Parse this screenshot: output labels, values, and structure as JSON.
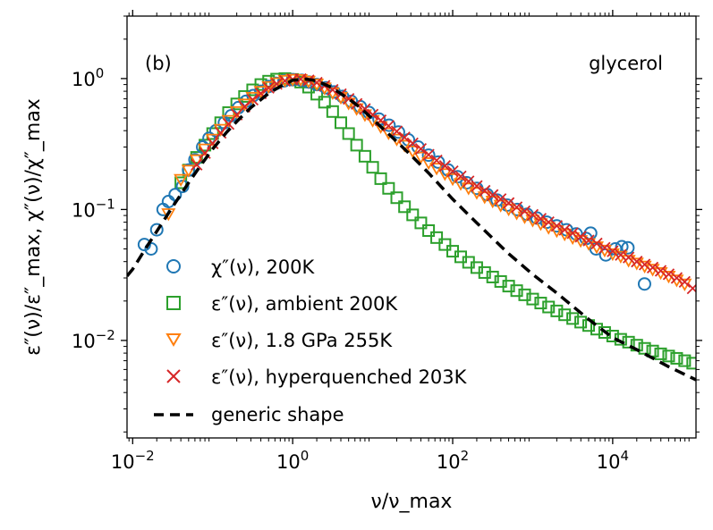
{
  "chart_data": {
    "type": "scatter",
    "title": "",
    "panel_label": "(b)",
    "corner_label": "glycerol",
    "xlabel": "ν/ν_max",
    "ylabel": "ε″(ν)/ε″_max,  χ″(ν)/χ″_max",
    "xscale": "log",
    "yscale": "log",
    "xlim": [
      0.0085,
      110000
    ],
    "ylim": [
      0.0018,
      3
    ],
    "xticks": [
      {
        "value": 0.01,
        "base": "10",
        "exp": "−2"
      },
      {
        "value": 1,
        "base": "10",
        "exp": "0"
      },
      {
        "value": 100,
        "base": "10",
        "exp": "2"
      },
      {
        "value": 10000,
        "base": "10",
        "exp": "4"
      }
    ],
    "yticks": [
      {
        "value": 0.01,
        "base": "10",
        "exp": "−2"
      },
      {
        "value": 0.1,
        "base": "10",
        "exp": "−1"
      },
      {
        "value": 1,
        "base": "10",
        "exp": "0"
      }
    ],
    "legend_position": "lower-left",
    "legend": [
      {
        "label": "χ″(ν), 200K",
        "marker": "circle",
        "color": "#1f77b4"
      },
      {
        "label": "ε″(ν), ambient 200K",
        "marker": "square",
        "color": "#2ca02c"
      },
      {
        "label": "ε″(ν), 1.8 GPa 255K",
        "marker": "triangle-down",
        "color": "#ff7f0e"
      },
      {
        "label": "ε″(ν), hyperquenched 203K",
        "marker": "x",
        "color": "#d62728"
      },
      {
        "label": "generic shape",
        "marker": "dashed-line",
        "color": "#000000"
      }
    ],
    "series": [
      {
        "name": "χ″(ν), 200K",
        "marker": "circle",
        "color": "#1f77b4",
        "x": [
          0.014,
          0.017,
          0.02,
          0.024,
          0.028,
          0.034,
          0.042,
          0.05,
          0.06,
          0.075,
          0.09,
          0.11,
          0.14,
          0.17,
          0.21,
          0.26,
          0.32,
          0.4,
          0.5,
          0.62,
          0.78,
          1.0,
          1.3,
          1.6,
          2.0,
          2.6,
          3.3,
          4.2,
          5.4,
          7,
          9,
          12,
          16,
          21,
          28,
          37,
          50,
          66,
          88,
          115,
          150,
          200,
          270,
          360,
          480,
          640,
          850,
          1130,
          1500,
          2000,
          2650,
          3500,
          4650,
          5300,
          6200,
          8200,
          10800,
          13000,
          15500,
          25000
        ],
        "y": [
          0.054,
          0.05,
          0.07,
          0.1,
          0.115,
          0.13,
          0.15,
          0.2,
          0.24,
          0.3,
          0.35,
          0.4,
          0.46,
          0.52,
          0.6,
          0.67,
          0.74,
          0.8,
          0.87,
          0.92,
          0.96,
          0.98,
          0.97,
          0.94,
          0.9,
          0.85,
          0.79,
          0.73,
          0.67,
          0.61,
          0.55,
          0.49,
          0.44,
          0.39,
          0.34,
          0.3,
          0.26,
          0.23,
          0.2,
          0.178,
          0.16,
          0.145,
          0.13,
          0.118,
          0.108,
          0.1,
          0.092,
          0.086,
          0.08,
          0.075,
          0.07,
          0.065,
          0.06,
          0.066,
          0.05,
          0.045,
          0.05,
          0.052,
          0.051,
          0.027
        ]
      },
      {
        "name": "ε″(ν), ambient 200K",
        "marker": "square",
        "color": "#2ca02c",
        "x": [
          0.04,
          0.05,
          0.063,
          0.08,
          0.1,
          0.126,
          0.158,
          0.2,
          0.25,
          0.316,
          0.4,
          0.5,
          0.63,
          0.8,
          1.0,
          1.26,
          1.58,
          2.0,
          2.5,
          3.16,
          4.0,
          5.0,
          6.3,
          8.0,
          10,
          12.6,
          15.8,
          20,
          25,
          31.6,
          40,
          50,
          63,
          80,
          100,
          126,
          158,
          200,
          251,
          316,
          398,
          501,
          631,
          794,
          1000,
          1260,
          1580,
          2000,
          2510,
          3160,
          3980,
          5010,
          6310,
          7940,
          10000,
          12600,
          15800,
          20000,
          25100,
          31600,
          39800,
          50100,
          63100,
          79400,
          100000
        ],
        "y": [
          0.16,
          0.2,
          0.25,
          0.31,
          0.38,
          0.46,
          0.55,
          0.64,
          0.73,
          0.82,
          0.9,
          0.955,
          0.99,
          1.0,
          0.985,
          0.94,
          0.86,
          0.76,
          0.66,
          0.56,
          0.46,
          0.38,
          0.31,
          0.255,
          0.21,
          0.172,
          0.145,
          0.123,
          0.105,
          0.091,
          0.079,
          0.069,
          0.061,
          0.054,
          0.048,
          0.0435,
          0.0395,
          0.036,
          0.033,
          0.0305,
          0.0282,
          0.026,
          0.024,
          0.0223,
          0.0207,
          0.0193,
          0.018,
          0.0168,
          0.0157,
          0.0147,
          0.0138,
          0.013,
          0.0122,
          0.0115,
          0.0108,
          0.0102,
          0.0097,
          0.0092,
          0.0087,
          0.0083,
          0.0079,
          0.0076,
          0.0073,
          0.007,
          0.0067
        ]
      },
      {
        "name": "ε″(ν), 1.8 GPa 255K",
        "marker": "triangle-down",
        "color": "#ff7f0e",
        "x": [
          0.028,
          0.04,
          0.05,
          0.063,
          0.08,
          0.1,
          0.126,
          0.158,
          0.2,
          0.25,
          0.316,
          0.4,
          0.5,
          0.63,
          0.8,
          1.0,
          1.26,
          1.58,
          2.0,
          2.5,
          3.16,
          4.0,
          5.0,
          6.3,
          8.0,
          10,
          12.6,
          15.8,
          20,
          25,
          31.6,
          40,
          50,
          63,
          80,
          100,
          126,
          158,
          200,
          251,
          316,
          398,
          501,
          631,
          794,
          1000,
          1260,
          1580,
          2000,
          2510,
          3160,
          3980,
          5010,
          6310,
          7940,
          10000,
          12600,
          15800,
          20000,
          25100,
          31600,
          39800,
          50100,
          63100,
          79400
        ],
        "y": [
          0.093,
          0.17,
          0.2,
          0.24,
          0.29,
          0.345,
          0.41,
          0.48,
          0.56,
          0.64,
          0.72,
          0.8,
          0.87,
          0.93,
          0.97,
          0.99,
          0.985,
          0.955,
          0.91,
          0.85,
          0.78,
          0.72,
          0.65,
          0.59,
          0.53,
          0.48,
          0.43,
          0.385,
          0.345,
          0.31,
          0.28,
          0.252,
          0.228,
          0.207,
          0.188,
          0.172,
          0.158,
          0.146,
          0.135,
          0.125,
          0.116,
          0.108,
          0.101,
          0.094,
          0.088,
          0.083,
          0.078,
          0.073,
          0.069,
          0.065,
          0.061,
          0.058,
          0.055,
          0.052,
          0.049,
          0.046,
          0.044,
          0.041,
          0.039,
          0.037,
          0.035,
          0.033,
          0.031,
          0.029,
          0.027
        ]
      },
      {
        "name": "ε″(ν), hyperquenched 203K",
        "marker": "x",
        "color": "#d62728",
        "x": [
          0.063,
          0.08,
          0.1,
          0.126,
          0.158,
          0.2,
          0.25,
          0.316,
          0.4,
          0.5,
          0.63,
          0.8,
          1.0,
          1.26,
          1.58,
          2.0,
          2.5,
          3.16,
          4.0,
          5.0,
          6.3,
          8.0,
          10,
          12.6,
          15.8,
          20,
          25,
          31.6,
          40,
          50,
          63,
          80,
          100,
          126,
          158,
          200,
          251,
          316,
          398,
          501,
          631,
          794,
          1000,
          1260,
          1580,
          2000,
          2510,
          3160,
          3980,
          5010,
          6310,
          7940,
          10000,
          12600,
          15800,
          20000,
          25100,
          31600,
          39800,
          50100,
          63100,
          79400,
          100000
        ],
        "y": [
          0.22,
          0.27,
          0.32,
          0.385,
          0.45,
          0.53,
          0.61,
          0.69,
          0.77,
          0.85,
          0.91,
          0.96,
          0.985,
          0.99,
          0.97,
          0.93,
          0.88,
          0.82,
          0.76,
          0.7,
          0.64,
          0.585,
          0.53,
          0.48,
          0.435,
          0.395,
          0.355,
          0.32,
          0.29,
          0.262,
          0.237,
          0.215,
          0.196,
          0.179,
          0.164,
          0.151,
          0.139,
          0.129,
          0.12,
          0.112,
          0.104,
          0.097,
          0.091,
          0.085,
          0.08,
          0.075,
          0.07,
          0.066,
          0.062,
          0.058,
          0.055,
          0.051,
          0.048,
          0.045,
          0.043,
          0.04,
          0.038,
          0.036,
          0.034,
          0.032,
          0.03,
          0.028,
          0.025
        ]
      },
      {
        "name": "generic shape",
        "marker": "dashed-line",
        "color": "#000000",
        "x": [
          0.0085,
          0.01,
          0.015,
          0.02,
          0.03,
          0.05,
          0.07,
          0.1,
          0.15,
          0.2,
          0.3,
          0.5,
          0.7,
          1.0,
          1.5,
          2,
          3,
          5,
          7,
          10,
          20,
          30,
          50,
          100,
          200,
          500,
          1000,
          2000,
          5000,
          10000,
          20000,
          50000,
          110000
        ],
        "y": [
          0.031,
          0.035,
          0.052,
          0.068,
          0.1,
          0.16,
          0.215,
          0.29,
          0.39,
          0.47,
          0.6,
          0.77,
          0.87,
          0.97,
          0.99,
          0.96,
          0.86,
          0.7,
          0.6,
          0.49,
          0.33,
          0.26,
          0.19,
          0.12,
          0.079,
          0.046,
          0.032,
          0.023,
          0.0145,
          0.0105,
          0.0085,
          0.0063,
          0.005
        ]
      }
    ]
  }
}
